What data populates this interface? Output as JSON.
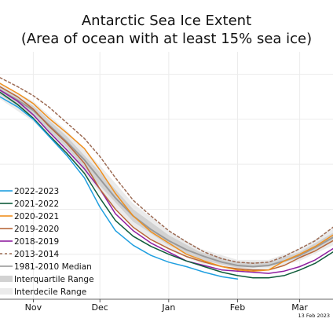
{
  "chart_data": {
    "type": "line",
    "title": "Antarctic Sea Ice Extent",
    "subtitle": "(Area of ocean with at least 15% sea ice)",
    "xlabel": "",
    "ylabel": "",
    "x_ticks": [
      "Nov",
      "Dec",
      "Jan",
      "Feb",
      "Mar"
    ],
    "x_tick_days": [
      15,
      45,
      76,
      107,
      135
    ],
    "xlim": [
      0,
      150
    ],
    "ylim": [
      0,
      22
    ],
    "grid": true,
    "legend_position": "left",
    "date_stamp": "13 Feb 2023",
    "bands": [
      {
        "name": "Interdecile Range",
        "color": "#ebebeb",
        "x": [
          0,
          15,
          30,
          45,
          60,
          76,
          90,
          107,
          121,
          135,
          150
        ],
        "lower": [
          17.8,
          15.8,
          13.0,
          9.5,
          6.4,
          4.4,
          3.2,
          2.6,
          2.7,
          3.4,
          4.8
        ],
        "upper": [
          19.2,
          17.6,
          15.0,
          11.9,
          8.5,
          6.1,
          4.5,
          3.5,
          3.5,
          4.5,
          6.3
        ]
      },
      {
        "name": "Interquartile Range",
        "color": "#d2d2d2",
        "x": [
          0,
          15,
          30,
          45,
          60,
          76,
          90,
          107,
          121,
          135,
          150
        ],
        "lower": [
          18.2,
          16.3,
          13.5,
          10.1,
          6.9,
          4.8,
          3.5,
          2.8,
          2.9,
          3.7,
          5.2
        ],
        "upper": [
          18.9,
          17.2,
          14.5,
          11.3,
          8.0,
          5.7,
          4.2,
          3.3,
          3.3,
          4.2,
          5.9
        ]
      }
    ],
    "series": [
      {
        "name": "2022-2023",
        "color": "#1f9fe0",
        "dash": "",
        "x": [
          0,
          8,
          15,
          22,
          30,
          38,
          45,
          52,
          60,
          68,
          76,
          84,
          92,
          100,
          107
        ],
        "values": [
          18.0,
          17.1,
          16.0,
          14.5,
          12.8,
          10.8,
          8.2,
          6.1,
          4.8,
          3.9,
          3.3,
          2.9,
          2.4,
          2.0,
          1.8
        ]
      },
      {
        "name": "2021-2022",
        "color": "#0f5c3a",
        "dash": "",
        "x": [
          0,
          8,
          15,
          22,
          30,
          38,
          45,
          52,
          60,
          68,
          76,
          84,
          92,
          100,
          107,
          114,
          121,
          128,
          135,
          142,
          150
        ],
        "values": [
          18.4,
          17.3,
          16.1,
          14.6,
          13.0,
          11.2,
          9.0,
          7.0,
          5.6,
          4.7,
          4.0,
          3.4,
          2.9,
          2.4,
          2.1,
          1.9,
          1.9,
          2.1,
          2.6,
          3.2,
          4.2
        ]
      },
      {
        "name": "2020-2021",
        "color": "#f0901e",
        "dash": "",
        "x": [
          0,
          8,
          15,
          22,
          30,
          38,
          45,
          52,
          60,
          68,
          76,
          84,
          92,
          100,
          107,
          114,
          121,
          128,
          135,
          142,
          150
        ],
        "values": [
          19.2,
          18.3,
          17.4,
          16.1,
          14.8,
          13.4,
          11.5,
          9.4,
          7.4,
          6.0,
          5.0,
          4.0,
          3.4,
          2.9,
          2.6,
          2.5,
          2.6,
          3.4,
          4.0,
          4.7,
          5.7
        ]
      },
      {
        "name": "2019-2020",
        "color": "#b8683a",
        "dash": "",
        "x": [
          0,
          8,
          15,
          22,
          30,
          38,
          45,
          52,
          60,
          68,
          76,
          84,
          92,
          100,
          107,
          114,
          121,
          128,
          135,
          142,
          150
        ],
        "values": [
          18.9,
          18.0,
          16.9,
          15.4,
          13.9,
          12.1,
          9.8,
          8.0,
          6.4,
          5.3,
          4.5,
          3.8,
          3.3,
          2.9,
          2.7,
          2.6,
          2.6,
          3.0,
          3.7,
          4.3,
          5.2
        ]
      },
      {
        "name": "2018-2019",
        "color": "#8f1fa0",
        "dash": "",
        "x": [
          0,
          8,
          15,
          22,
          30,
          38,
          45,
          52,
          60,
          68,
          76,
          84,
          92,
          100,
          107,
          114,
          121,
          128,
          135,
          142,
          150
        ],
        "values": [
          18.6,
          17.6,
          16.4,
          14.9,
          13.3,
          11.6,
          9.8,
          7.6,
          6.1,
          5.0,
          4.2,
          3.4,
          3.0,
          2.6,
          2.5,
          2.4,
          2.3,
          2.5,
          2.9,
          3.5,
          4.5
        ]
      },
      {
        "name": "2013-2014",
        "color": "#9c6b54",
        "dash": "3,3",
        "x": [
          0,
          8,
          15,
          22,
          30,
          38,
          45,
          52,
          60,
          68,
          76,
          84,
          92,
          100,
          107,
          114,
          121,
          128,
          135,
          142,
          150
        ],
        "values": [
          19.7,
          18.9,
          18.1,
          17.1,
          15.7,
          14.3,
          12.7,
          10.8,
          8.8,
          7.4,
          6.1,
          5.1,
          4.2,
          3.6,
          3.3,
          3.2,
          3.3,
          3.8,
          4.5,
          5.2,
          6.4
        ]
      },
      {
        "name": "1981-2010 Median",
        "color": "#9a9a9a",
        "dash": "",
        "x": [
          0,
          8,
          15,
          22,
          30,
          38,
          45,
          52,
          60,
          68,
          76,
          84,
          92,
          100,
          107,
          114,
          121,
          128,
          135,
          142,
          150
        ],
        "values": [
          18.6,
          17.7,
          16.8,
          15.5,
          14.0,
          12.4,
          10.7,
          9.0,
          7.4,
          6.2,
          5.2,
          4.4,
          3.8,
          3.3,
          3.0,
          2.9,
          3.0,
          3.4,
          3.9,
          4.6,
          5.5
        ]
      }
    ],
    "legend": [
      {
        "label": "2022-2023",
        "kind": "line",
        "color": "#1f9fe0"
      },
      {
        "label": "2021-2022",
        "kind": "line",
        "color": "#0f5c3a"
      },
      {
        "label": "2020-2021",
        "kind": "line",
        "color": "#f0901e"
      },
      {
        "label": "2019-2020",
        "kind": "line",
        "color": "#b8683a"
      },
      {
        "label": "2018-2019",
        "kind": "line",
        "color": "#8f1fa0"
      },
      {
        "label": "2013-2014",
        "kind": "dashed",
        "color": "#9c6b54"
      },
      {
        "label": "1981-2010 Median",
        "kind": "line",
        "color": "#9a9a9a"
      },
      {
        "label": "Interquartile Range",
        "kind": "band",
        "color": "#d2d2d2"
      },
      {
        "label": "Interdecile Range",
        "kind": "band",
        "color": "#ebebeb"
      }
    ]
  }
}
